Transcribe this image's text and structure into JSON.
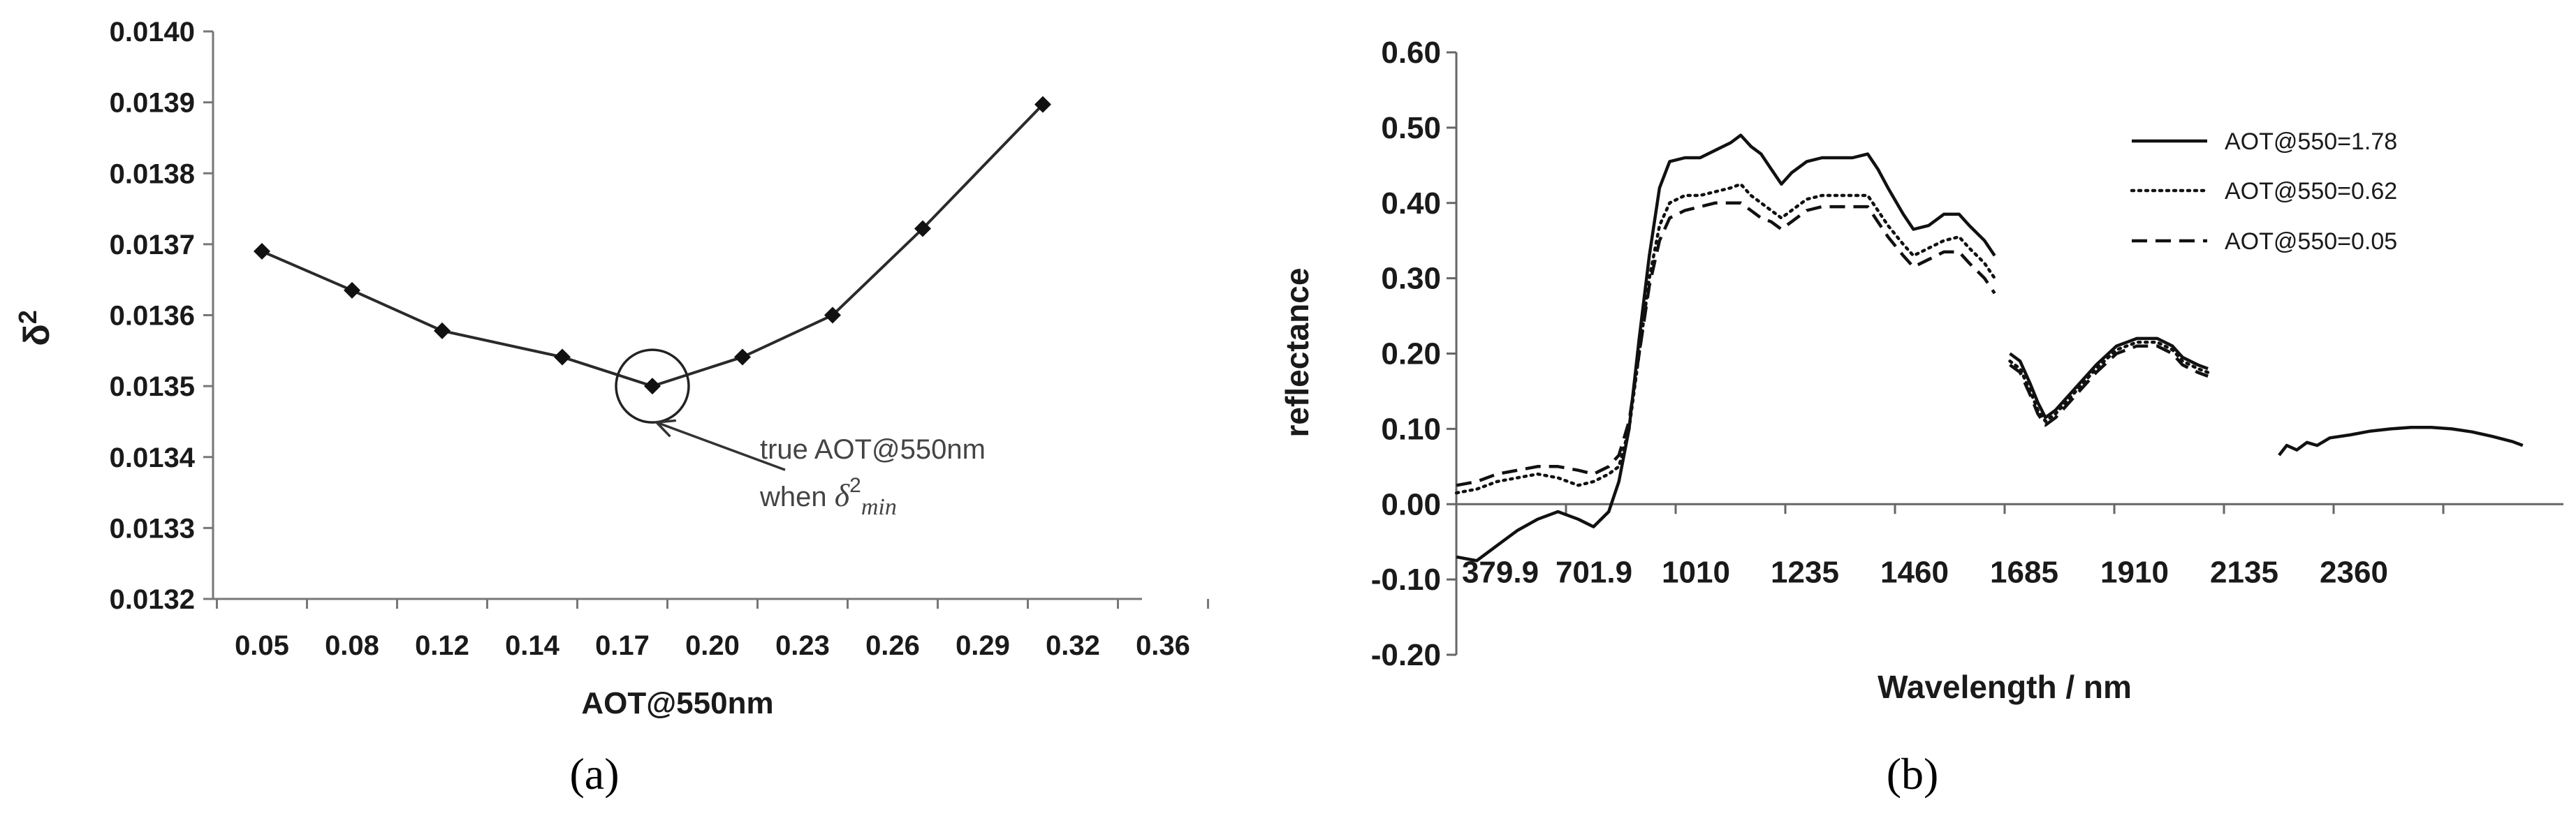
{
  "chart_data": [
    {
      "panel_label": "(a)",
      "type": "line",
      "title": "",
      "xlabel": "AOT@550nm",
      "ylabel": "δ2",
      "ylabel_base": "δ",
      "ylabel_sup": "2",
      "categories": [
        "0.05",
        "0.08",
        "0.12",
        "0.14",
        "0.17",
        "0.20",
        "0.23",
        "0.26",
        "0.29",
        "0.32",
        "0.36"
      ],
      "points": [
        {
          "x": 0.05,
          "y": 0.01369
        },
        {
          "x": 0.08,
          "y": 0.013635
        },
        {
          "x": 0.12,
          "y": 0.013578
        },
        {
          "x": 0.15,
          "y": 0.013541
        },
        {
          "x": 0.18,
          "y": 0.0135
        },
        {
          "x": 0.21,
          "y": 0.013541
        },
        {
          "x": 0.24,
          "y": 0.0136
        },
        {
          "x": 0.27,
          "y": 0.013722
        },
        {
          "x": 0.31,
          "y": 0.013897
        }
      ],
      "ylim": [
        0.0132,
        0.014
      ],
      "yticks": [
        "0.0140",
        "0.0139",
        "0.0138",
        "0.0137",
        "0.0136",
        "0.0135",
        "0.0134",
        "0.0133",
        "0.0132"
      ],
      "marker": "diamond",
      "annotation": {
        "line1": "true AOT@550nm",
        "line2_prefix": "when ",
        "line2_symbol": "δ",
        "line2_sup": "2",
        "line2_sub": "min",
        "target_point_index": 4
      }
    },
    {
      "panel_label": "(b)",
      "type": "line",
      "title": "",
      "xlabel": "Wavelength / nm",
      "ylabel": "reflectance",
      "xlim": [
        379.9,
        2560
      ],
      "ylim": [
        -0.2,
        0.6
      ],
      "xticks": [
        "379.9",
        "701.9",
        "1010",
        "1235",
        "1460",
        "1685",
        "1910",
        "2135",
        "2360"
      ],
      "yticks": [
        "0.60",
        "0.50",
        "0.40",
        "0.30",
        "0.20",
        "0.10",
        "0.00",
        "-0.10",
        "-0.20"
      ],
      "series": [
        {
          "name": "AOT@550=1.78",
          "style": "solid",
          "segments": [
            [
              [
                380,
                -0.07
              ],
              [
                420,
                -0.075
              ],
              [
                460,
                -0.055
              ],
              [
                500,
                -0.035
              ],
              [
                540,
                -0.02
              ],
              [
                580,
                -0.01
              ],
              [
                620,
                -0.02
              ],
              [
                650,
                -0.03
              ],
              [
                680,
                -0.01
              ],
              [
                700,
                0.03
              ],
              [
                720,
                0.1
              ],
              [
                740,
                0.22
              ],
              [
                760,
                0.33
              ],
              [
                780,
                0.42
              ],
              [
                800,
                0.455
              ],
              [
                830,
                0.46
              ],
              [
                860,
                0.46
              ],
              [
                890,
                0.47
              ],
              [
                920,
                0.48
              ],
              [
                940,
                0.49
              ],
              [
                960,
                0.475
              ],
              [
                980,
                0.465
              ],
              [
                1000,
                0.445
              ],
              [
                1020,
                0.425
              ],
              [
                1040,
                0.44
              ],
              [
                1070,
                0.455
              ],
              [
                1100,
                0.46
              ],
              [
                1130,
                0.46
              ],
              [
                1160,
                0.46
              ],
              [
                1190,
                0.465
              ],
              [
                1210,
                0.445
              ],
              [
                1230,
                0.42
              ],
              [
                1260,
                0.385
              ],
              [
                1280,
                0.365
              ],
              [
                1310,
                0.37
              ],
              [
                1340,
                0.385
              ],
              [
                1370,
                0.385
              ],
              [
                1390,
                0.37
              ],
              [
                1420,
                0.35
              ],
              [
                1440,
                0.33
              ]
            ],
            [
              [
                1470,
                0.2
              ],
              [
                1490,
                0.19
              ],
              [
                1510,
                0.16
              ],
              [
                1525,
                0.135
              ],
              [
                1540,
                0.115
              ],
              [
                1560,
                0.125
              ],
              [
                1600,
                0.155
              ],
              [
                1640,
                0.185
              ],
              [
                1680,
                0.21
              ],
              [
                1720,
                0.22
              ],
              [
                1760,
                0.22
              ],
              [
                1790,
                0.21
              ],
              [
                1810,
                0.195
              ],
              [
                1840,
                0.185
              ],
              [
                1860,
                0.18
              ]
            ],
            [
              [
                2000,
                0.065
              ],
              [
                2015,
                0.078
              ],
              [
                2035,
                0.072
              ],
              [
                2055,
                0.082
              ],
              [
                2075,
                0.078
              ],
              [
                2100,
                0.088
              ],
              [
                2140,
                0.092
              ],
              [
                2180,
                0.097
              ],
              [
                2220,
                0.1
              ],
              [
                2260,
                0.102
              ],
              [
                2300,
                0.102
              ],
              [
                2340,
                0.1
              ],
              [
                2380,
                0.096
              ],
              [
                2420,
                0.09
              ],
              [
                2460,
                0.083
              ],
              [
                2480,
                0.078
              ]
            ]
          ]
        },
        {
          "name": "AOT@550=0.62",
          "style": "dotted",
          "segments": [
            [
              [
                380,
                0.015
              ],
              [
                420,
                0.02
              ],
              [
                460,
                0.03
              ],
              [
                500,
                0.035
              ],
              [
                540,
                0.04
              ],
              [
                580,
                0.035
              ],
              [
                620,
                0.025
              ],
              [
                650,
                0.03
              ],
              [
                680,
                0.04
              ],
              [
                700,
                0.05
              ],
              [
                720,
                0.1
              ],
              [
                740,
                0.2
              ],
              [
                760,
                0.3
              ],
              [
                780,
                0.37
              ],
              [
                800,
                0.4
              ],
              [
                830,
                0.41
              ],
              [
                860,
                0.41
              ],
              [
                890,
                0.415
              ],
              [
                920,
                0.42
              ],
              [
                940,
                0.425
              ],
              [
                960,
                0.41
              ],
              [
                980,
                0.4
              ],
              [
                1000,
                0.39
              ],
              [
                1020,
                0.38
              ],
              [
                1040,
                0.39
              ],
              [
                1070,
                0.405
              ],
              [
                1100,
                0.41
              ],
              [
                1130,
                0.41
              ],
              [
                1160,
                0.41
              ],
              [
                1190,
                0.41
              ],
              [
                1210,
                0.39
              ],
              [
                1230,
                0.37
              ],
              [
                1260,
                0.345
              ],
              [
                1280,
                0.33
              ],
              [
                1310,
                0.34
              ],
              [
                1340,
                0.35
              ],
              [
                1370,
                0.355
              ],
              [
                1390,
                0.34
              ],
              [
                1420,
                0.32
              ],
              [
                1440,
                0.3
              ]
            ],
            [
              [
                1470,
                0.19
              ],
              [
                1490,
                0.18
              ],
              [
                1510,
                0.15
              ],
              [
                1525,
                0.125
              ],
              [
                1540,
                0.11
              ],
              [
                1560,
                0.12
              ],
              [
                1600,
                0.15
              ],
              [
                1640,
                0.18
              ],
              [
                1680,
                0.205
              ],
              [
                1720,
                0.215
              ],
              [
                1760,
                0.215
              ],
              [
                1790,
                0.205
              ],
              [
                1810,
                0.19
              ],
              [
                1840,
                0.18
              ],
              [
                1860,
                0.175
              ]
            ]
          ]
        },
        {
          "name": "AOT@550=0.05",
          "style": "dashed",
          "segments": [
            [
              [
                380,
                0.025
              ],
              [
                420,
                0.03
              ],
              [
                460,
                0.04
              ],
              [
                500,
                0.045
              ],
              [
                540,
                0.05
              ],
              [
                580,
                0.05
              ],
              [
                620,
                0.045
              ],
              [
                650,
                0.04
              ],
              [
                680,
                0.05
              ],
              [
                700,
                0.065
              ],
              [
                720,
                0.11
              ],
              [
                740,
                0.2
              ],
              [
                760,
                0.29
              ],
              [
                780,
                0.35
              ],
              [
                800,
                0.38
              ],
              [
                830,
                0.39
              ],
              [
                860,
                0.395
              ],
              [
                890,
                0.4
              ],
              [
                920,
                0.4
              ],
              [
                940,
                0.4
              ],
              [
                960,
                0.39
              ],
              [
                980,
                0.38
              ],
              [
                1000,
                0.375
              ],
              [
                1020,
                0.365
              ],
              [
                1040,
                0.375
              ],
              [
                1070,
                0.39
              ],
              [
                1100,
                0.395
              ],
              [
                1130,
                0.395
              ],
              [
                1160,
                0.395
              ],
              [
                1190,
                0.395
              ],
              [
                1210,
                0.375
              ],
              [
                1230,
                0.355
              ],
              [
                1260,
                0.33
              ],
              [
                1280,
                0.315
              ],
              [
                1310,
                0.325
              ],
              [
                1340,
                0.335
              ],
              [
                1370,
                0.335
              ],
              [
                1390,
                0.32
              ],
              [
                1420,
                0.3
              ],
              [
                1440,
                0.28
              ]
            ],
            [
              [
                1470,
                0.185
              ],
              [
                1490,
                0.175
              ],
              [
                1510,
                0.145
              ],
              [
                1525,
                0.12
              ],
              [
                1540,
                0.105
              ],
              [
                1560,
                0.115
              ],
              [
                1600,
                0.145
              ],
              [
                1640,
                0.175
              ],
              [
                1680,
                0.2
              ],
              [
                1720,
                0.21
              ],
              [
                1760,
                0.21
              ],
              [
                1790,
                0.2
              ],
              [
                1810,
                0.185
              ],
              [
                1840,
                0.175
              ],
              [
                1860,
                0.17
              ]
            ]
          ]
        }
      ],
      "legend_position": "top-right"
    }
  ]
}
